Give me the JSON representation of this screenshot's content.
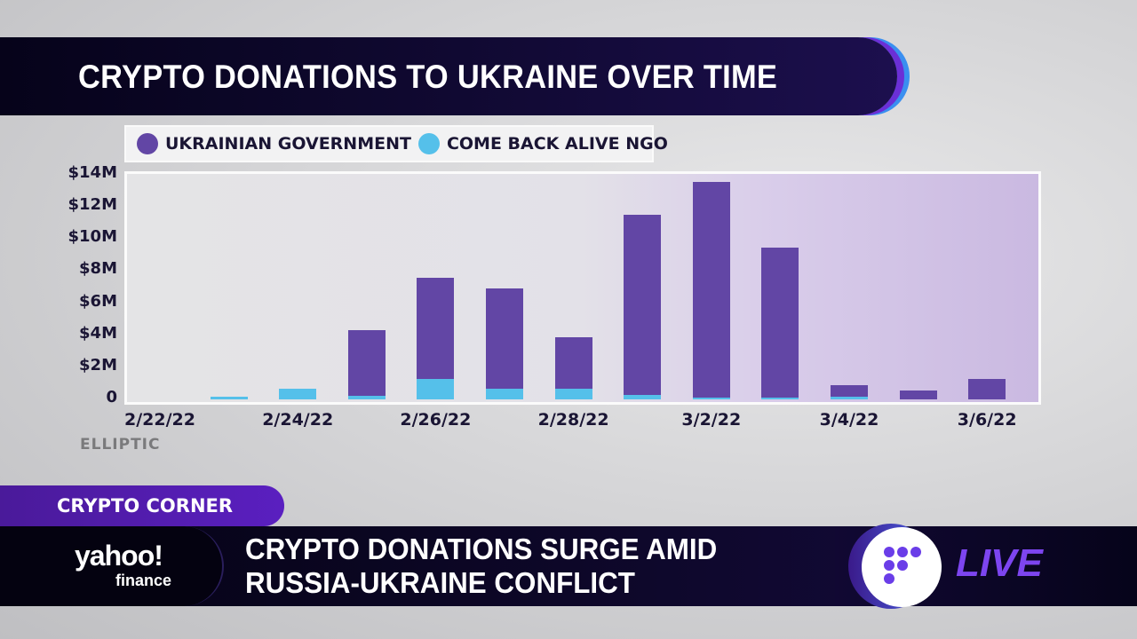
{
  "header": {
    "title": "CRYPTO DONATIONS TO UKRAINE OVER TIME"
  },
  "legend": [
    {
      "label": "UKRAINIAN GOVERNMENT",
      "color": "#6246a5"
    },
    {
      "label": "COME BACK ALIVE NGO",
      "color": "#55c0ea"
    }
  ],
  "source": "ELLIPTIC",
  "lower_third": {
    "tag": "CRYPTO CORNER",
    "brand_top": "yahoo!",
    "brand_bottom": "finance",
    "headline_line1": "CRYPTO DONATIONS SURGE AMID",
    "headline_line2": "RUSSIA-UKRAINE CONFLICT",
    "live_label": "LIVE"
  },
  "colors": {
    "government": "#6246a5",
    "ngo": "#55c0ea",
    "live": "#7d45f0"
  },
  "chart_data": {
    "type": "bar",
    "stacked": true,
    "title": "CRYPTO DONATIONS TO UKRAINE OVER TIME",
    "xlabel": "",
    "ylabel": "",
    "categories": [
      "2/22/22",
      "2/23/22",
      "2/24/22",
      "2/25/22",
      "2/26/22",
      "2/27/22",
      "2/28/22",
      "3/1/22",
      "3/2/22",
      "3/3/22",
      "3/4/22",
      "3/5/22",
      "3/6/22"
    ],
    "x_tick_labels": [
      "2/22/22",
      "2/24/22",
      "2/26/22",
      "2/28/22",
      "3/2/22",
      "3/4/22",
      "3/6/22"
    ],
    "y_tick_labels": [
      "0",
      "$2M",
      "$4M",
      "$6M",
      "$8M",
      "$10M",
      "$12M",
      "$14M"
    ],
    "ylim": [
      0,
      14000000
    ],
    "legend_position": "top-left",
    "grid": false,
    "series": [
      {
        "name": "COME BACK ALIVE NGO",
        "color": "#55c0ea",
        "values": [
          0,
          150000,
          650000,
          200000,
          1250000,
          650000,
          650000,
          300000,
          50000,
          50000,
          150000,
          0,
          0
        ]
      },
      {
        "name": "UKRAINIAN GOVERNMENT",
        "color": "#6246a5",
        "values": [
          0,
          0,
          0,
          4100000,
          6350000,
          6250000,
          3250000,
          11200000,
          13450000,
          9350000,
          750000,
          550000,
          1250000
        ]
      }
    ],
    "source": "ELLIPTIC"
  }
}
